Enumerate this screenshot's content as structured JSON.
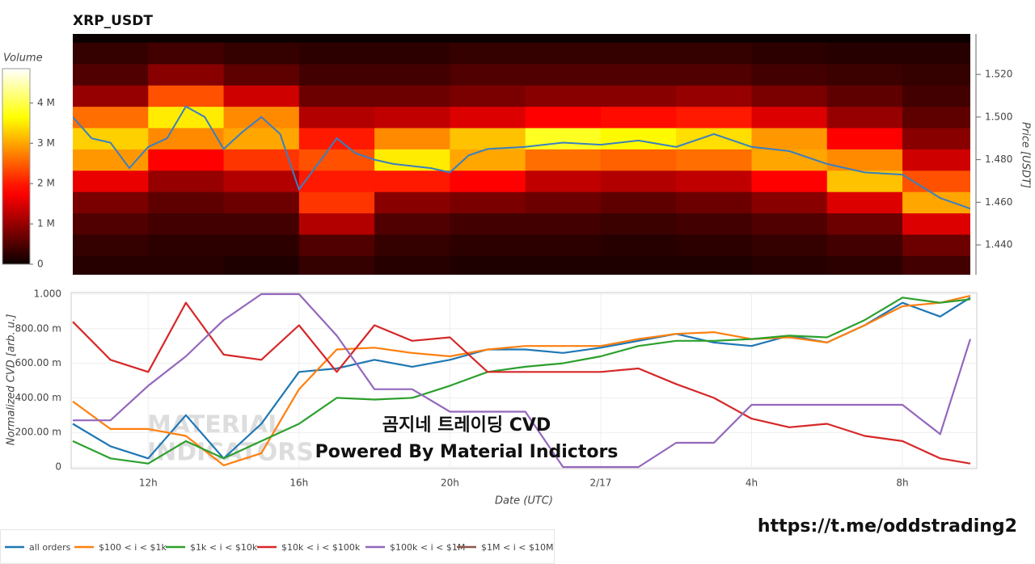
{
  "chart_data": [
    {
      "type": "heatmap",
      "title": "XRP_USDT",
      "colorbar_label": "Volume",
      "ylabel": "Price [USDT]",
      "xlim": [
        10,
        33.8
      ],
      "ylim": [
        1.426,
        1.539
      ],
      "yticks": [
        {
          "value": 1.44,
          "label": "1.440"
        },
        {
          "value": 1.46,
          "label": "1.460"
        },
        {
          "value": 1.48,
          "label": "1.480"
        },
        {
          "value": 1.5,
          "label": "1.500"
        },
        {
          "value": 1.52,
          "label": "1.520"
        }
      ],
      "zlim": [
        0,
        4850000
      ],
      "zticks": [
        0,
        {
          "value": 1000000,
          "label": "1 M"
        },
        {
          "value": 2000000,
          "label": "2 M"
        },
        {
          "value": 3000000,
          "label": "3 M"
        },
        {
          "value": 4000000,
          "label": "4 M"
        }
      ],
      "x_bins": [
        10,
        12,
        14,
        16,
        18,
        20,
        22,
        24,
        26,
        28,
        30,
        32,
        33.8
      ],
      "price_levels": [
        1.43,
        1.44,
        1.45,
        1.46,
        1.47,
        1.48,
        1.49,
        1.5,
        1.51,
        1.52,
        1.53
      ],
      "volume": [
        [
          200000,
          200000,
          150000,
          300000,
          200000,
          150000,
          150000,
          150000,
          150000,
          200000,
          250000,
          400000
        ],
        [
          300000,
          250000,
          250000,
          500000,
          300000,
          250000,
          250000,
          200000,
          250000,
          300000,
          400000,
          700000
        ],
        [
          500000,
          400000,
          400000,
          1200000,
          500000,
          400000,
          400000,
          350000,
          400000,
          500000,
          700000,
          1500000
        ],
        [
          800000,
          600000,
          700000,
          2200000,
          900000,
          800000,
          700000,
          600000,
          700000,
          900000,
          1500000,
          3000000
        ],
        [
          1600000,
          1000000,
          1200000,
          2000000,
          2000000,
          1800000,
          1300000,
          1200000,
          1300000,
          1800000,
          3200000,
          2400000
        ],
        [
          2900000,
          1800000,
          2200000,
          2400000,
          3500000,
          3000000,
          2600000,
          2500000,
          2600000,
          3000000,
          2800000,
          1400000
        ],
        [
          3300000,
          2800000,
          3000000,
          2000000,
          2800000,
          3200000,
          3800000,
          3600000,
          3400000,
          2900000,
          1800000,
          900000
        ],
        [
          2600000,
          3500000,
          2800000,
          1200000,
          1300000,
          1500000,
          1800000,
          1900000,
          2000000,
          1500000,
          1000000,
          600000
        ],
        [
          1000000,
          2400000,
          1400000,
          700000,
          700000,
          800000,
          900000,
          900000,
          1000000,
          800000,
          600000,
          400000
        ],
        [
          500000,
          900000,
          600000,
          400000,
          400000,
          500000,
          500000,
          500000,
          500000,
          400000,
          350000,
          300000
        ],
        [
          300000,
          400000,
          300000,
          250000,
          250000,
          300000,
          300000,
          300000,
          300000,
          250000,
          200000,
          200000
        ]
      ],
      "price_line": {
        "color": "#3a7fc0",
        "x": [
          10,
          10.5,
          11,
          11.5,
          12,
          12.5,
          13,
          13.5,
          14,
          14.5,
          15,
          15.5,
          16,
          16.5,
          17,
          17.5,
          18,
          18.5,
          19,
          19.5,
          20,
          20.5,
          21,
          22,
          23,
          24,
          25,
          26,
          27,
          28,
          29,
          30,
          31,
          32,
          33,
          33.8
        ],
        "values": [
          1.5,
          1.49,
          1.488,
          1.476,
          1.486,
          1.49,
          1.505,
          1.5,
          1.485,
          1.493,
          1.5,
          1.492,
          1.466,
          1.478,
          1.49,
          1.483,
          1.48,
          1.478,
          1.477,
          1.476,
          1.474,
          1.482,
          1.485,
          1.486,
          1.488,
          1.487,
          1.489,
          1.486,
          1.492,
          1.486,
          1.484,
          1.478,
          1.474,
          1.473,
          1.462,
          1.457
        ]
      }
    },
    {
      "type": "line",
      "ylabel": "Normalized CVD [arb. u.]",
      "xlabel": "Date (UTC)",
      "xlim": [
        10,
        33.8
      ],
      "ylim": [
        0,
        1
      ],
      "xticks": [
        {
          "value": 12,
          "label": "12h"
        },
        {
          "value": 16,
          "label": "16h"
        },
        {
          "value": 20,
          "label": "20h"
        },
        {
          "value": 24,
          "label": "2/17"
        },
        {
          "value": 28,
          "label": "4h"
        },
        {
          "value": 32,
          "label": "8h"
        }
      ],
      "yticks": [
        0,
        {
          "value": 0.2,
          "label": "200.00 m"
        },
        {
          "value": 0.4,
          "label": "400.00 m"
        },
        {
          "value": 0.6,
          "label": "600.00 m"
        },
        {
          "value": 0.8,
          "label": "800.00 m"
        },
        {
          "value": 1,
          "label": "1.000"
        }
      ],
      "grid": true,
      "x": [
        10,
        11,
        12,
        13,
        14,
        15,
        16,
        17,
        18,
        19,
        20,
        21,
        22,
        23,
        24,
        25,
        26,
        27,
        28,
        29,
        30,
        31,
        32,
        33,
        33.8
      ],
      "series": [
        {
          "name": "all orders",
          "color": "#1f77b4",
          "values": [
            0.25,
            0.12,
            0.05,
            0.3,
            0.05,
            0.25,
            0.55,
            0.57,
            0.62,
            0.58,
            0.62,
            0.68,
            0.68,
            0.66,
            0.69,
            0.73,
            0.77,
            0.72,
            0.7,
            0.76,
            0.72,
            0.82,
            0.95,
            0.87,
            0.98
          ]
        },
        {
          "name": "$100 < i < $1k",
          "color": "#ff7f0e",
          "values": [
            0.38,
            0.22,
            0.22,
            0.18,
            0.01,
            0.08,
            0.45,
            0.68,
            0.69,
            0.66,
            0.64,
            0.68,
            0.7,
            0.7,
            0.7,
            0.74,
            0.77,
            0.78,
            0.74,
            0.75,
            0.72,
            0.82,
            0.93,
            0.95,
            0.99
          ]
        },
        {
          "name": "$1k < i < $10k",
          "color": "#2ca02c",
          "values": [
            0.15,
            0.05,
            0.02,
            0.15,
            0.05,
            0.15,
            0.25,
            0.4,
            0.39,
            0.4,
            0.47,
            0.55,
            0.58,
            0.6,
            0.64,
            0.7,
            0.73,
            0.73,
            0.74,
            0.76,
            0.75,
            0.85,
            0.98,
            0.95,
            0.97
          ]
        },
        {
          "name": "$10k < i < $100k",
          "color": "#d62728",
          "values": [
            0.84,
            0.62,
            0.55,
            0.95,
            0.65,
            0.62,
            0.82,
            0.55,
            0.82,
            0.73,
            0.75,
            0.55,
            0.55,
            0.55,
            0.55,
            0.57,
            0.48,
            0.4,
            0.28,
            0.23,
            0.25,
            0.18,
            0.15,
            0.05,
            0.02
          ]
        },
        {
          "name": "$100k < i < $1M",
          "color": "#9467bd",
          "values": [
            0.27,
            0.27,
            0.47,
            0.64,
            0.85,
            1,
            1,
            0.76,
            0.45,
            0.45,
            0.32,
            0.32,
            0.32,
            0,
            0,
            0,
            0.14,
            0.14,
            0.36,
            0.36,
            0.36,
            0.36,
            0.36,
            0.19,
            0.74
          ]
        },
        {
          "name": "$1M < i < $10M",
          "color": "#8c564b",
          "values": [
            null,
            null,
            null,
            null,
            null,
            null,
            null,
            null,
            null,
            null,
            null,
            null,
            null,
            null,
            null,
            null,
            null,
            null,
            null,
            null,
            null,
            null,
            null,
            null,
            null
          ]
        }
      ],
      "watermark": [
        "MATERIAL",
        "INDICATORS"
      ],
      "annotations": [
        "곰지네 트레이딩 CVD",
        "Powered By Material Indictors",
        "https://t.me/oddstrading2"
      ]
    }
  ]
}
